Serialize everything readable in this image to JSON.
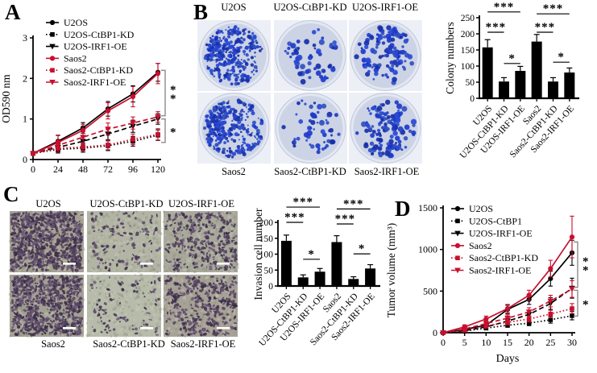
{
  "colors": {
    "series_black": "#000000",
    "series_red": "#c8102e",
    "bracket_gray": "#8c8c8c",
    "colony_blues": [
      "#1d39c9",
      "#2a49d6",
      "#3150bf",
      "#1730a8"
    ],
    "dish_background": "#cbd3e5",
    "dish_rim": "#e2e7f2",
    "invasion_stains": [
      "#4f3f5c",
      "#5f4c6d",
      "#3a2d47",
      "#6d5a79",
      "#473851"
    ]
  },
  "panels": {
    "A": {
      "letter": "A",
      "chart_data": {
        "type": "line",
        "x": [
          0,
          24,
          48,
          72,
          96,
          120
        ],
        "xticks": [
          0,
          24,
          48,
          72,
          96,
          120
        ],
        "xlabel": "",
        "ylabel": "OD590 nm",
        "ylim": [
          0,
          3
        ],
        "yticks": [
          0,
          1,
          2,
          3
        ],
        "legend_position": "top-left",
        "series": [
          {
            "name": "U2OS",
            "color": "#000000",
            "line": "solid",
            "marker": "circle",
            "values": [
              0.15,
              0.45,
              0.78,
              1.25,
              1.62,
              2.15
            ],
            "errors": [
              0.05,
              0.15,
              0.13,
              0.18,
              0.2,
              0.22
            ]
          },
          {
            "name": "U2OS-CtBP1-KD",
            "color": "#000000",
            "line": "dotted",
            "marker": "square",
            "values": [
              0.15,
              0.25,
              0.28,
              0.34,
              0.45,
              0.6
            ],
            "errors": [
              0.04,
              0.09,
              0.1,
              0.12,
              0.12,
              0.13
            ]
          },
          {
            "name": "U2OS-IRF1-OE",
            "color": "#000000",
            "line": "dashed",
            "marker": "triangle-down",
            "values": [
              0.15,
              0.3,
              0.45,
              0.63,
              0.82,
              1.0
            ],
            "errors": [
              0.04,
              0.1,
              0.12,
              0.14,
              0.15,
              0.13
            ]
          },
          {
            "name": "Saos2",
            "color": "#c8102e",
            "line": "solid",
            "marker": "circle",
            "values": [
              0.15,
              0.42,
              0.72,
              1.2,
              1.55,
              2.12
            ],
            "errors": [
              0.05,
              0.17,
              0.15,
              0.2,
              0.25,
              0.25
            ]
          },
          {
            "name": "Saos2-CtBP1-KD",
            "color": "#c8102e",
            "line": "dotted",
            "marker": "square",
            "values": [
              0.15,
              0.28,
              0.31,
              0.36,
              0.5,
              0.62
            ],
            "errors": [
              0.04,
              0.1,
              0.1,
              0.12,
              0.13,
              0.14
            ]
          },
          {
            "name": "Saos2-IRF1-OE",
            "color": "#c8102e",
            "line": "dashed",
            "marker": "triangle-down",
            "values": [
              0.15,
              0.35,
              0.55,
              0.75,
              0.9,
              1.05
            ],
            "errors": [
              0.04,
              0.12,
              0.14,
              0.15,
              0.15,
              0.13
            ]
          }
        ],
        "sig_brackets": [
          {
            "from": 2.2,
            "to": 1.08,
            "label": "**"
          },
          {
            "from": 1.0,
            "to": 0.42,
            "label": "*"
          }
        ]
      }
    },
    "B": {
      "letter": "B",
      "top_labels": [
        "U2OS",
        "U2OS-CtBP1-KD",
        "U2OS-IRF1-OE"
      ],
      "bottom_labels": [
        "Saos2",
        "Saos2-CtBP1-KD",
        "Saos2-IRF1-OE"
      ],
      "dish_densities": [
        400,
        60,
        130,
        380,
        55,
        135
      ],
      "chart_data": {
        "type": "bar",
        "categories": [
          "U2OS",
          "U2OS-CtBP1-KD",
          "U2OS-IRF1-OE",
          "Saos2",
          "Saos2-CtBP1-KD",
          "Saos2-IRF1-OE"
        ],
        "values": [
          158,
          52,
          85,
          176,
          52,
          80
        ],
        "errors": [
          24,
          12,
          14,
          22,
          12,
          14
        ],
        "ylabel": "Colony numbers",
        "ylim": [
          0,
          250
        ],
        "yticks": [
          0,
          50,
          100,
          150,
          200,
          250
        ],
        "bar_color": "#000000",
        "significance": [
          {
            "a": 0,
            "b": 1,
            "y": 205,
            "label": "***"
          },
          {
            "a": 0,
            "b": 2,
            "y": 268,
            "label": "***"
          },
          {
            "a": 1,
            "b": 2,
            "y": 108,
            "label": "*"
          },
          {
            "a": 3,
            "b": 4,
            "y": 205,
            "label": "***"
          },
          {
            "a": 3,
            "b": 5,
            "y": 262,
            "label": "***"
          },
          {
            "a": 4,
            "b": 5,
            "y": 112,
            "label": "*"
          }
        ]
      }
    },
    "C": {
      "letter": "C",
      "top_labels": [
        "U2OS",
        "U2OS-CtBP1-KD",
        "U2OS-IRF1-OE"
      ],
      "bottom_labels": [
        "Saos2",
        "Saos2-CtBP1-KD",
        "Saos2-IRF1-OE"
      ],
      "image_densities": [
        900,
        120,
        340,
        800,
        90,
        380
      ],
      "image_bg_colors": [
        "#a6a292",
        "#b3b5a4",
        "#a9a99b",
        "#a3a093",
        "#b7bbaa",
        "#a7a296"
      ],
      "chart_data": {
        "type": "bar",
        "categories": [
          "U2OS",
          "U2OS-CtBP1-KD",
          "U2OS-IRF1-OE",
          "Saos2",
          "Saos2-CtBP1-KD",
          "Saos2-IRF1-OE"
        ],
        "values": [
          142,
          27,
          45,
          138,
          22,
          55
        ],
        "errors": [
          18,
          8,
          10,
          20,
          7,
          12
        ],
        "ylabel": "Invasion cell number",
        "ylim": [
          0,
          200
        ],
        "yticks": [
          0,
          50,
          100,
          150,
          200
        ],
        "bar_color": "#000000",
        "significance": [
          {
            "a": 0,
            "b": 1,
            "y": 200,
            "label": "***"
          },
          {
            "a": 0,
            "b": 2,
            "y": 248,
            "label": "***"
          },
          {
            "a": 1,
            "b": 2,
            "y": 84,
            "label": "*"
          },
          {
            "a": 3,
            "b": 4,
            "y": 195,
            "label": "***"
          },
          {
            "a": 3,
            "b": 5,
            "y": 242,
            "label": "***"
          },
          {
            "a": 4,
            "b": 5,
            "y": 101,
            "label": "*"
          }
        ]
      }
    },
    "D": {
      "letter": "D",
      "chart_data": {
        "type": "line",
        "x": [
          0,
          5,
          10,
          15,
          20,
          25,
          30
        ],
        "xticks": [
          0,
          5,
          10,
          15,
          20,
          25,
          30
        ],
        "xlabel": "Days",
        "ylabel": "Tumor volume (mm³)",
        "ylim": [
          0,
          1500
        ],
        "yticks": [
          0,
          500,
          1000,
          1500
        ],
        "legend_position": "top-left",
        "series": [
          {
            "name": "U2OS",
            "color": "#000000",
            "line": "solid",
            "marker": "circle",
            "values": [
              0,
              40,
              90,
              280,
              400,
              650,
              960
            ],
            "errors": [
              10,
              20,
              30,
              50,
              60,
              90,
              150
            ]
          },
          {
            "name": "U2OS-CtBP1",
            "color": "#000000",
            "line": "dotted",
            "marker": "square",
            "values": [
              0,
              20,
              55,
              90,
              115,
              155,
              205
            ],
            "errors": [
              8,
              12,
              20,
              25,
              30,
              40,
              50
            ]
          },
          {
            "name": "U2OS-IRF1-OE",
            "color": "#000000",
            "line": "dashed",
            "marker": "triangle-down",
            "values": [
              0,
              25,
              70,
              140,
              220,
              350,
              535
            ],
            "errors": [
              8,
              15,
              25,
              35,
              45,
              70,
              120
            ]
          },
          {
            "name": "Saos2",
            "color": "#c8102e",
            "line": "solid",
            "marker": "circle",
            "values": [
              0,
              70,
              165,
              290,
              450,
              770,
              1150
            ],
            "errors": [
              10,
              25,
              35,
              50,
              60,
              100,
              250
            ]
          },
          {
            "name": "Saos2-CtBP1-KD",
            "color": "#c8102e",
            "line": "dotted",
            "marker": "square",
            "values": [
              0,
              30,
              80,
              125,
              165,
              225,
              290
            ],
            "errors": [
              8,
              15,
              25,
              30,
              35,
              45,
              60
            ]
          },
          {
            "name": "Saos2-IRF1-OE",
            "color": "#c8102e",
            "line": "dashed",
            "marker": "triangle-down",
            "values": [
              0,
              45,
              110,
              175,
              250,
              380,
              525
            ],
            "errors": [
              8,
              18,
              28,
              40,
              50,
              70,
              100
            ]
          }
        ],
        "sig_brackets": [
          {
            "from": 1090,
            "to": 545,
            "label": "**"
          },
          {
            "from": 510,
            "to": 200,
            "label": "*"
          }
        ]
      }
    }
  }
}
